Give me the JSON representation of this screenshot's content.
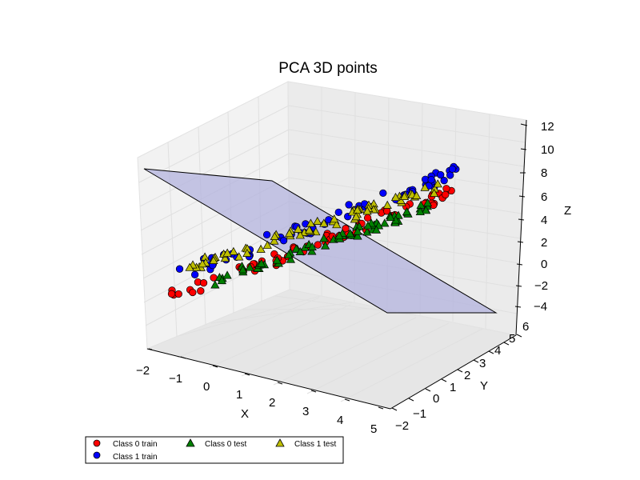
{
  "chart_data": {
    "type": "scatter",
    "title": "PCA 3D points",
    "xlabel": "X",
    "ylabel": "Y",
    "zlabel": "Z",
    "xlim": [
      -2,
      5
    ],
    "ylim": [
      -2,
      6
    ],
    "zlim": [
      -4,
      12
    ],
    "x_ticks": [
      "−2",
      "−1",
      "0",
      "1",
      "2",
      "3",
      "4",
      "5"
    ],
    "y_ticks": [
      "−2",
      "−1",
      "0",
      "1",
      "2",
      "3",
      "4",
      "5",
      "6"
    ],
    "z_ticks": [
      "−4",
      "−2",
      "0",
      "2",
      "4",
      "6",
      "8",
      "10",
      "12"
    ],
    "grid": true,
    "legend_placement": "bottom-left",
    "series": [
      {
        "name": "Class 0 train",
        "marker": "circle",
        "color": "#ff0000"
      },
      {
        "name": "Class 1 train",
        "marker": "circle",
        "color": "#0000ff"
      },
      {
        "name": "Class 0 test",
        "marker": "triangle",
        "color": "#008000"
      },
      {
        "name": "Class 1 test",
        "marker": "triangle",
        "color": "#bfbf00"
      }
    ],
    "plane": {
      "color": "#b3b3dd"
    }
  }
}
